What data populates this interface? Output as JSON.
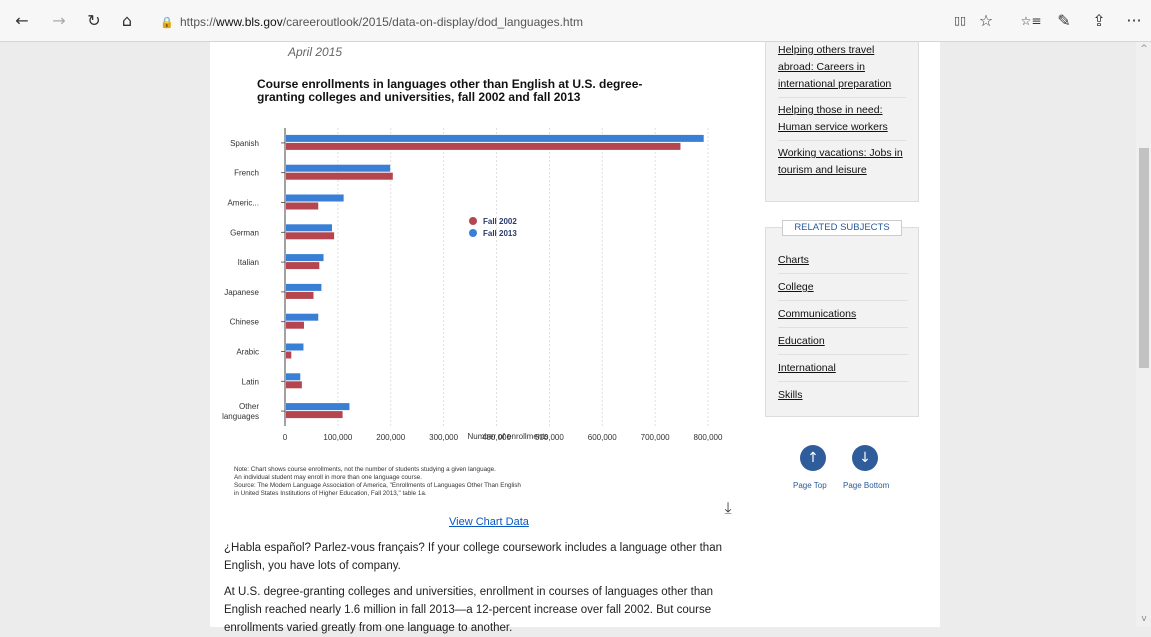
{
  "browser": {
    "back": "←",
    "forward": "→",
    "refresh": "↻",
    "home": "⌂",
    "url_host_prefix": "https://",
    "url_host": "www.bls.gov",
    "url_path": "/careeroutlook/2015/data-on-display/dod_languages.htm",
    "reader": "▯▯",
    "favorite": "☆",
    "favorites": "☆≡",
    "notes": "✎",
    "share": "⇪",
    "more": "···"
  },
  "article": {
    "date": "April 2015",
    "view_chart_data": "View Chart Data",
    "paragraph1": "¿Habla español? Parlez-vous français? If your college coursework includes a language other than English, you have lots of company.",
    "paragraph2": "At U.S. degree-granting colleges and universities, enrollment in courses of languages other than English reached nearly 1.6 million in fall 2013—a 12-percent increase over fall 2002. But course enrollments varied greatly from one language to another."
  },
  "note": {
    "line1": "Note: Chart shows course enrollments, not the number of students studying a given language.",
    "line2": "An individual student may enroll in more than one language course.",
    "line3": "Source: The Modern Language Association of America, \"Enrollments of Languages Other Than English",
    "line4": "in United States Institutions of Higher Education, Fall 2013,\" table 1a."
  },
  "sidebar": {
    "links": [
      "Helping others travel abroad: Careers in international preparation",
      "Helping those in need: Human service workers",
      "Working vacations: Jobs in tourism and leisure"
    ],
    "related_title": "RELATED SUBJECTS",
    "related": [
      "Charts",
      "College",
      "Communications",
      "Education",
      "International",
      "Skills"
    ],
    "page_top": "Page Top",
    "page_bottom": "Page Bottom"
  },
  "colors": {
    "fall_2002": "#b5454f",
    "fall_2013": "#3a7fd6",
    "link": "#0b57c1"
  },
  "chart_data": {
    "type": "bar",
    "orientation": "horizontal",
    "title": "Course enrollments in languages other than English at U.S. degree-granting colleges and universities, fall 2002 and fall 2013",
    "xlabel": "Number of enrollments",
    "categories": [
      "Spanish",
      "French",
      "Americ...",
      "German",
      "Italian",
      "Japanese",
      "Chinese",
      "Arabic",
      "Latin",
      "Other languages"
    ],
    "series": [
      {
        "name": "Fall 2002",
        "values": [
          746000,
          202000,
          61000,
          91000,
          63000,
          52000,
          34000,
          10000,
          30000,
          107000
        ]
      },
      {
        "name": "Fall 2013",
        "values": [
          790000,
          197000,
          109000,
          87000,
          71000,
          67000,
          61000,
          33000,
          27000,
          120000
        ]
      }
    ],
    "xlim": [
      0,
      800000
    ],
    "xticks": [
      "0",
      "100,000",
      "200,000",
      "300,000",
      "400,000",
      "500,000",
      "600,000",
      "700,000",
      "800,000"
    ],
    "legend_position": "center",
    "grid": true
  }
}
